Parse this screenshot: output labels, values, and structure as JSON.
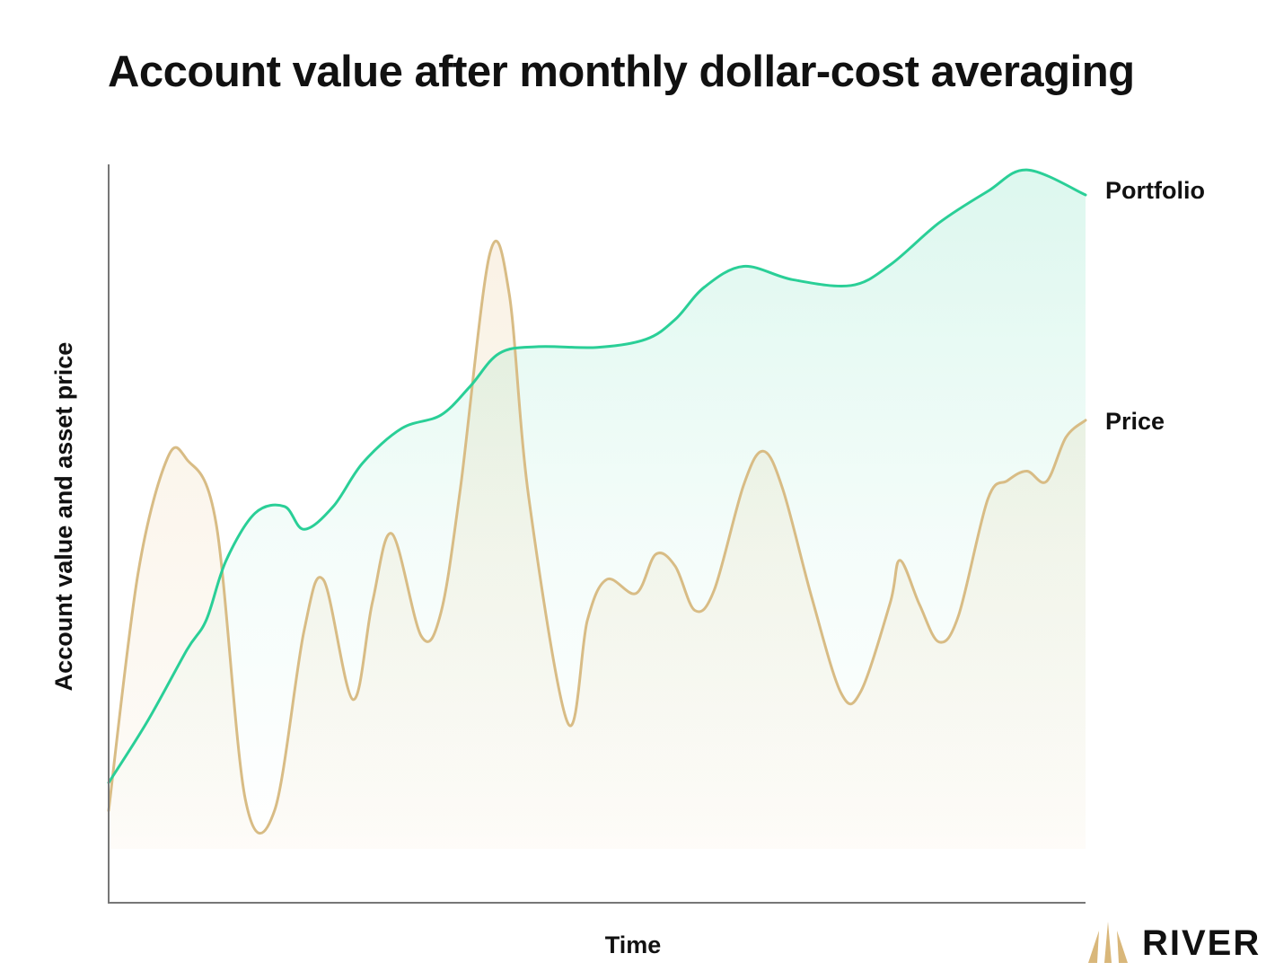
{
  "title": "Account value after monthly dollar-cost averaging",
  "brand": {
    "name": "RIVER",
    "logo_icon": "river-logo-icon",
    "logo_color": "#D9B77A"
  },
  "colors": {
    "portfolio": "#2ACF97",
    "price": "#D8BC85",
    "axis": "#777777"
  },
  "chart_data": {
    "type": "line",
    "title": "Account value after monthly dollar-cost averaging",
    "xlabel": "Time",
    "ylabel": "Account value and asset price",
    "x_ticks": "none",
    "y_ticks": "none",
    "grid": false,
    "legend": "labels at right end of lines",
    "xlim": [
      0,
      100
    ],
    "ylim": [
      0,
      100
    ],
    "series": [
      {
        "name": "Portfolio",
        "points": [
          [
            0,
            16.3
          ],
          [
            4,
            24.7
          ],
          [
            8,
            34.3
          ],
          [
            10,
            38.4
          ],
          [
            12,
            46.4
          ],
          [
            15,
            52.9
          ],
          [
            18,
            53.8
          ],
          [
            20,
            50.7
          ],
          [
            23,
            53.8
          ],
          [
            26,
            59.7
          ],
          [
            30,
            64.4
          ],
          [
            34,
            66.2
          ],
          [
            37,
            70.1
          ],
          [
            40,
            74.6
          ],
          [
            44,
            75.5
          ],
          [
            50,
            75.4
          ],
          [
            55,
            76.5
          ],
          [
            58,
            79.2
          ],
          [
            61,
            83.6
          ],
          [
            65,
            86.4
          ],
          [
            70,
            84.6
          ],
          [
            76,
            83.8
          ],
          [
            80,
            86.6
          ],
          [
            85,
            92.3
          ],
          [
            90,
            96.6
          ],
          [
            94,
            99.5
          ],
          [
            100,
            96.1
          ]
        ]
      },
      {
        "name": "Price",
        "points": [
          [
            0,
            12.5
          ],
          [
            3,
            44.6
          ],
          [
            6,
            60.3
          ],
          [
            8,
            60.2
          ],
          [
            11,
            51.5
          ],
          [
            14,
            14.0
          ],
          [
            17,
            12.6
          ],
          [
            20,
            36.9
          ],
          [
            22,
            43.8
          ],
          [
            25,
            27.6
          ],
          [
            27,
            40.8
          ],
          [
            29,
            50.1
          ],
          [
            32,
            36.2
          ],
          [
            34,
            39.3
          ],
          [
            36,
            56.2
          ],
          [
            39,
            88.0
          ],
          [
            41,
            82.7
          ],
          [
            43,
            55.1
          ],
          [
            47,
            24.4
          ],
          [
            49,
            38.3
          ],
          [
            51,
            43.9
          ],
          [
            54,
            42.0
          ],
          [
            56,
            47.3
          ],
          [
            58,
            45.7
          ],
          [
            60,
            39.7
          ],
          [
            62,
            42.5
          ],
          [
            65,
            56.7
          ],
          [
            67,
            61.3
          ],
          [
            69,
            56.2
          ],
          [
            72,
            41.3
          ],
          [
            75,
            28.4
          ],
          [
            77,
            28.7
          ],
          [
            80,
            40.7
          ],
          [
            81,
            46.5
          ],
          [
            83,
            40.5
          ],
          [
            85,
            35.4
          ],
          [
            87,
            39.0
          ],
          [
            90,
            54.8
          ],
          [
            92,
            57.3
          ],
          [
            94,
            58.6
          ],
          [
            96,
            57.2
          ],
          [
            98,
            63.2
          ],
          [
            100,
            65.5
          ]
        ]
      }
    ]
  }
}
